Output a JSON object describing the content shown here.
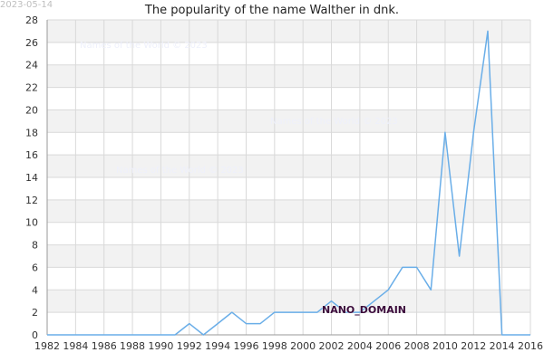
{
  "date_stamp": "2023-05-14",
  "watermark": "Names of the World © 2023",
  "domain_label": "NANO_DOMAIN",
  "colors": {
    "line": "#6aaee8",
    "grid": "#d9d9d9",
    "band": "#f2f2f2",
    "axis": "#999999"
  },
  "chart_data": {
    "type": "line",
    "title": "The popularity of the name Walther in dnk.",
    "xlabel": "",
    "ylabel": "",
    "xlim": [
      1982,
      2016
    ],
    "ylim": [
      0,
      28
    ],
    "x_ticks": [
      "1982",
      "1984",
      "1986",
      "1988",
      "1990",
      "1992",
      "1994",
      "1996",
      "1998",
      "2000",
      "2002",
      "2004",
      "2006",
      "2008",
      "2010",
      "2012",
      "2014",
      "2016"
    ],
    "y_ticks": [
      "0",
      "2",
      "4",
      "6",
      "8",
      "10",
      "12",
      "14",
      "16",
      "18",
      "20",
      "22",
      "24",
      "26",
      "28"
    ],
    "grid": true,
    "legend": "none",
    "series": [
      {
        "x": [
          1982,
          1983,
          1984,
          1985,
          1986,
          1987,
          1988,
          1989,
          1990,
          1991,
          1992,
          1993,
          1994,
          1995,
          1996,
          1997,
          1998,
          1999,
          2000,
          2001,
          2002,
          2003,
          2004,
          2005,
          2006,
          2007,
          2008,
          2009,
          2010,
          2011,
          2012,
          2013,
          2014,
          2015,
          2016
        ],
        "values": [
          0,
          0,
          0,
          0,
          0,
          0,
          0,
          0,
          0,
          0,
          1,
          0,
          1,
          2,
          1,
          1,
          2,
          2,
          2,
          2,
          3,
          2,
          2,
          3,
          4,
          6,
          6,
          4,
          18,
          7,
          18,
          27,
          0,
          0,
          0
        ]
      }
    ]
  }
}
